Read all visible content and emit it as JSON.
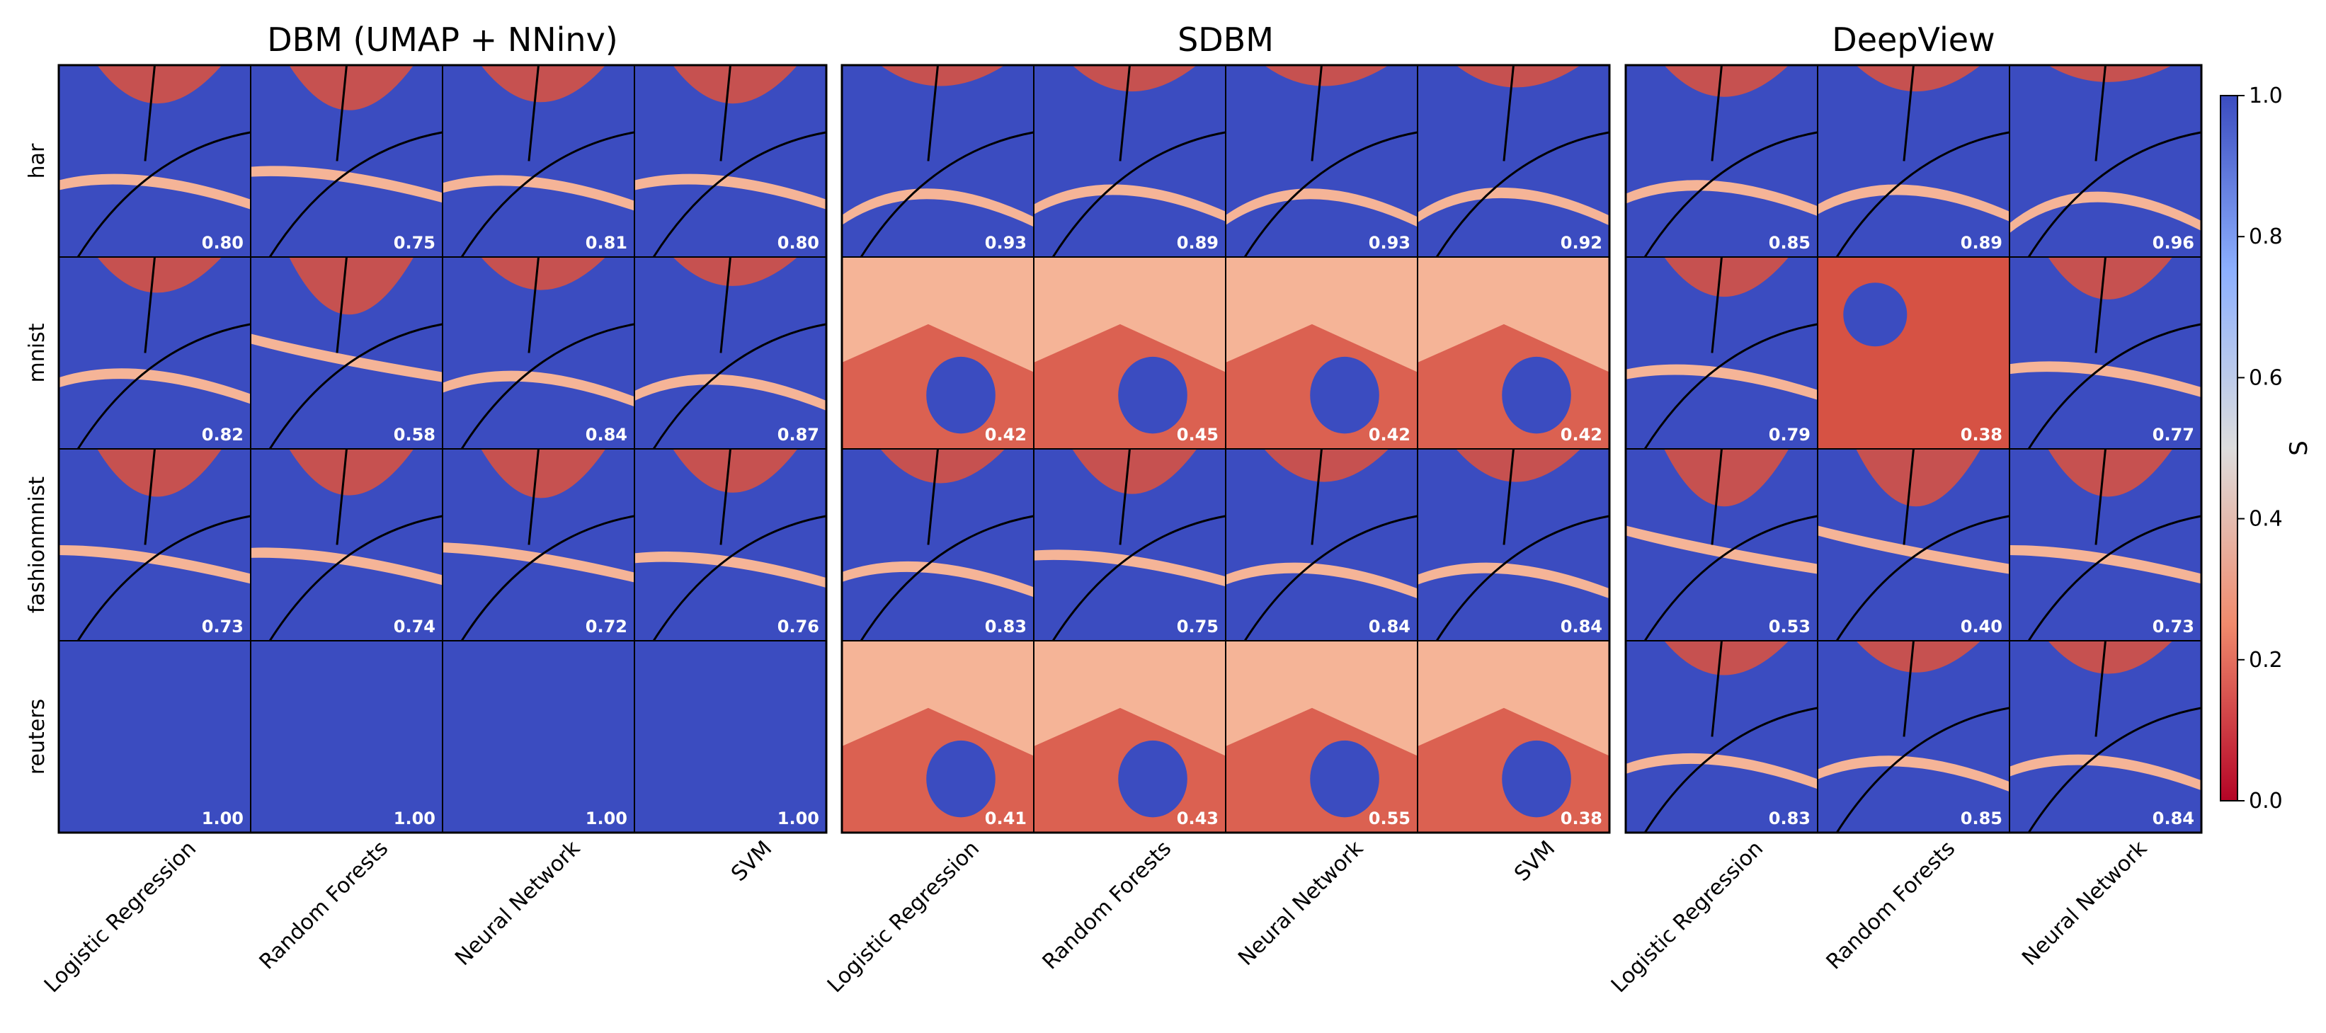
{
  "chart_data": {
    "type": "heatmap",
    "title": "",
    "colorbar": {
      "label": "S",
      "vmin": 0.0,
      "vmax": 1.0,
      "ticks": [
        "0.0",
        "0.2",
        "0.4",
        "0.6",
        "0.8",
        "1.0"
      ],
      "colormap": [
        "#b40426",
        "#f08a6c",
        "#dddddd",
        "#8db0fe",
        "#3b4cc0"
      ]
    },
    "row_labels": [
      "har",
      "mnist",
      "fashionmnist",
      "reuters"
    ],
    "groups": [
      {
        "title": "DBM (UMAP + NNinv)",
        "classifiers": [
          "Logistic Regression",
          "Random Forests",
          "Neural Network",
          "SVM"
        ],
        "scores": [
          [
            "0.80",
            "0.75",
            "0.81",
            "0.80"
          ],
          [
            "0.82",
            "0.58",
            "0.84",
            "0.87"
          ],
          [
            "0.73",
            "0.74",
            "0.72",
            "0.76"
          ],
          [
            "1.00",
            "1.00",
            "1.00",
            "1.00"
          ]
        ]
      },
      {
        "title": "SDBM",
        "classifiers": [
          "Logistic Regression",
          "Random Forests",
          "Neural Network",
          "SVM"
        ],
        "scores": [
          [
            "0.93",
            "0.89",
            "0.93",
            "0.92"
          ],
          [
            "0.42",
            "0.45",
            "0.42",
            "0.42"
          ],
          [
            "0.83",
            "0.75",
            "0.84",
            "0.84"
          ],
          [
            "0.41",
            "0.43",
            "0.55",
            "0.38"
          ]
        ]
      },
      {
        "title": "DeepView",
        "classifiers": [
          "Logistic Regression",
          "Random Forests",
          "Neural Network"
        ],
        "scores": [
          [
            "0.85",
            "0.89",
            "0.96"
          ],
          [
            "0.79",
            "0.38",
            "0.77"
          ],
          [
            "0.53",
            "0.40",
            "0.73"
          ],
          [
            "0.83",
            "0.85",
            "0.84"
          ]
        ]
      }
    ]
  }
}
